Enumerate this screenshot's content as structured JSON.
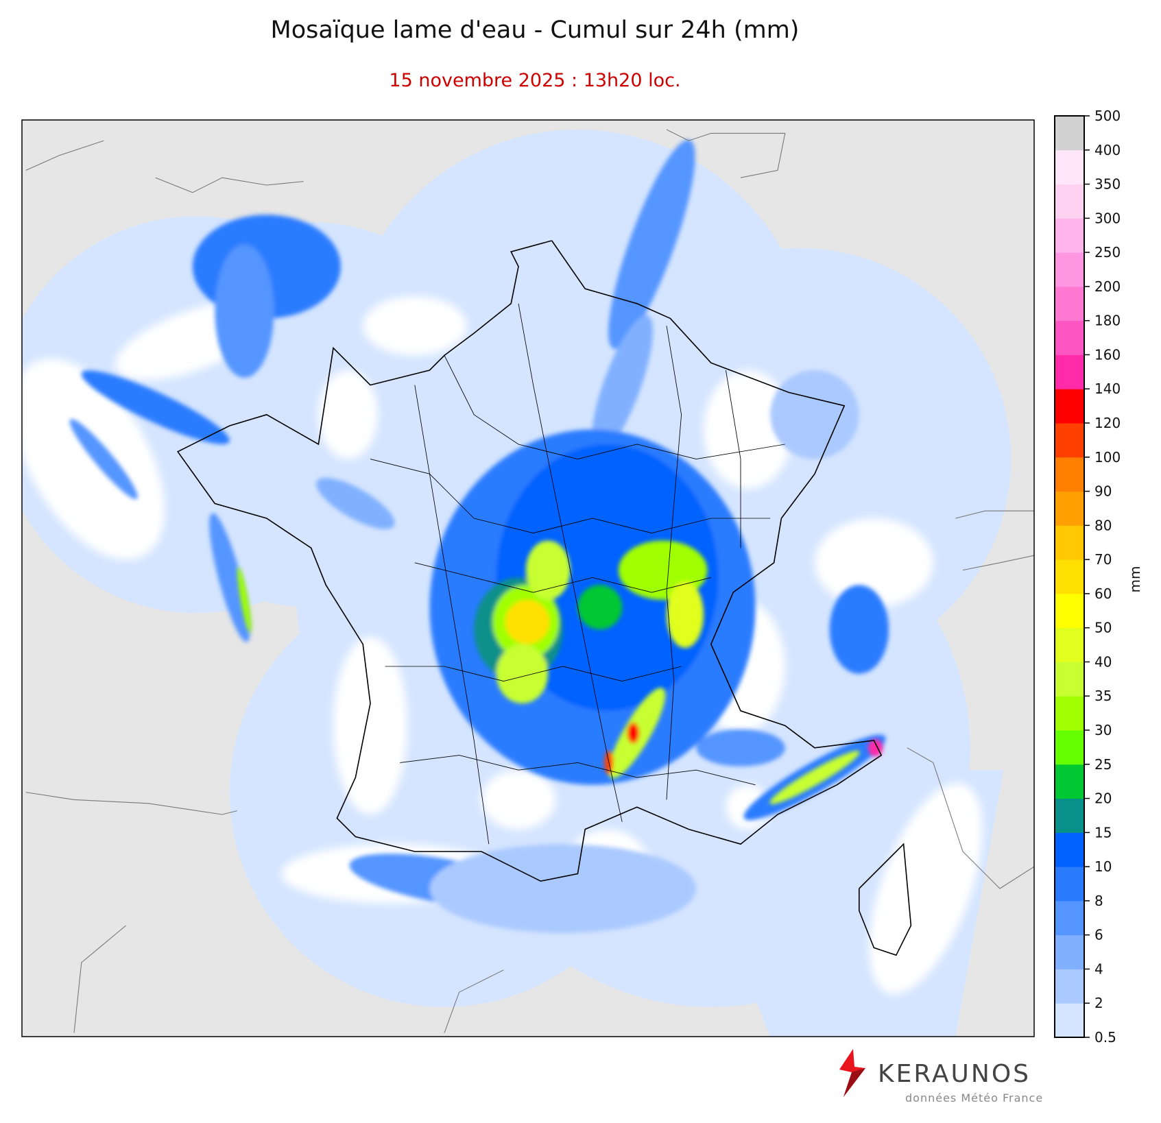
{
  "header": {
    "title": "Mosaïque lame d'eau - Cumul sur 24h (mm)",
    "subtitle": "15 novembre 2025 : 13h20 loc."
  },
  "colorbar": {
    "unit": "mm",
    "ticks": [
      "0.5",
      "2",
      "4",
      "6",
      "8",
      "10",
      "15",
      "20",
      "25",
      "30",
      "35",
      "40",
      "50",
      "60",
      "70",
      "80",
      "90",
      "100",
      "120",
      "140",
      "160",
      "180",
      "200",
      "250",
      "300",
      "350",
      "400",
      "500"
    ],
    "colors": [
      "#d5e5ff",
      "#aac9ff",
      "#80b0ff",
      "#5595ff",
      "#2b7bff",
      "#0062ff",
      "#08908a",
      "#00c832",
      "#66ff00",
      "#a0ff00",
      "#c8ff32",
      "#e1ff1e",
      "#ffff00",
      "#ffe000",
      "#ffc800",
      "#ffa000",
      "#ff7f00",
      "#ff4000",
      "#ff0000",
      "#ff2ba8",
      "#ff55c3",
      "#ff78d2",
      "#ff96e1",
      "#ffb4ec",
      "#ffd2f2",
      "#ffe6f9",
      "#d2d2d2"
    ]
  },
  "map": {
    "background_color": "#e6e6e6",
    "no_rain_color": "#ffffff"
  },
  "footer": {
    "brand": "KERAUNOS",
    "credit": "données Météo France"
  }
}
